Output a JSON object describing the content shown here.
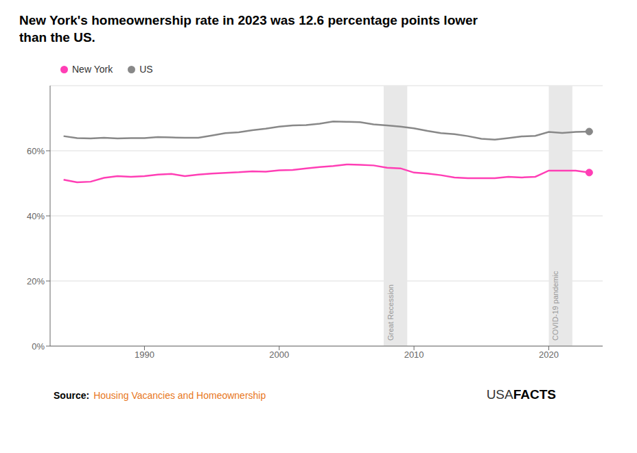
{
  "chart_data": {
    "type": "line",
    "title": "New York's homeownership rate in 2023 was 12.6 percentage points lower\nthan the US.",
    "x": [
      1984,
      1985,
      1986,
      1987,
      1988,
      1989,
      1990,
      1991,
      1992,
      1993,
      1994,
      1995,
      1996,
      1997,
      1998,
      1999,
      2000,
      2001,
      2002,
      2003,
      2004,
      2005,
      2006,
      2007,
      2008,
      2009,
      2010,
      2011,
      2012,
      2013,
      2014,
      2015,
      2016,
      2017,
      2018,
      2019,
      2020,
      2021,
      2022,
      2023
    ],
    "series": [
      {
        "name": "New York",
        "color": "#FF3EB5",
        "marker": "circle",
        "values": [
          51.1,
          50.3,
          50.5,
          51.7,
          52.2,
          52.0,
          52.2,
          52.7,
          52.9,
          52.2,
          52.7,
          53.0,
          53.2,
          53.4,
          53.7,
          53.6,
          54.0,
          54.1,
          54.6,
          55.0,
          55.3,
          55.8,
          55.7,
          55.5,
          54.8,
          54.6,
          53.3,
          53.0,
          52.5,
          51.8,
          51.6,
          51.6,
          51.6,
          52.0,
          51.8,
          52.0,
          53.9,
          53.9,
          53.9,
          53.3
        ]
      },
      {
        "name": "US",
        "color": "#888888",
        "marker": "circle",
        "values": [
          64.5,
          63.9,
          63.8,
          64.0,
          63.8,
          63.9,
          63.9,
          64.2,
          64.1,
          64.0,
          64.0,
          64.7,
          65.4,
          65.7,
          66.3,
          66.8,
          67.4,
          67.8,
          67.9,
          68.3,
          69.0,
          68.9,
          68.8,
          68.1,
          67.8,
          67.4,
          66.9,
          66.1,
          65.4,
          65.1,
          64.5,
          63.7,
          63.4,
          63.9,
          64.4,
          64.6,
          65.8,
          65.5,
          65.8,
          65.9
        ]
      }
    ],
    "shading": [
      {
        "start": 2007.75,
        "end": 2009.5,
        "label": "Great Recession",
        "color": "#e8e8e8"
      },
      {
        "start": 2020.0,
        "end": 2021.75,
        "label": "COVID-19 pandemic",
        "color": "#e8e8e8"
      }
    ],
    "xlim": [
      1983,
      2024
    ],
    "xticks": [
      1990,
      2000,
      2010,
      2020
    ],
    "ylim": [
      0,
      80
    ],
    "yticks": [
      {
        "value": 0,
        "label": "0%"
      },
      {
        "value": 20,
        "label": "20%"
      },
      {
        "value": 40,
        "label": "40%"
      },
      {
        "value": 60,
        "label": "60%"
      }
    ],
    "grid": true,
    "source": {
      "label": "Source:",
      "text": "Housing Vacancies and Homeownership",
      "color": "#E87722"
    },
    "watermark": [
      "USA",
      "FACTS"
    ]
  }
}
